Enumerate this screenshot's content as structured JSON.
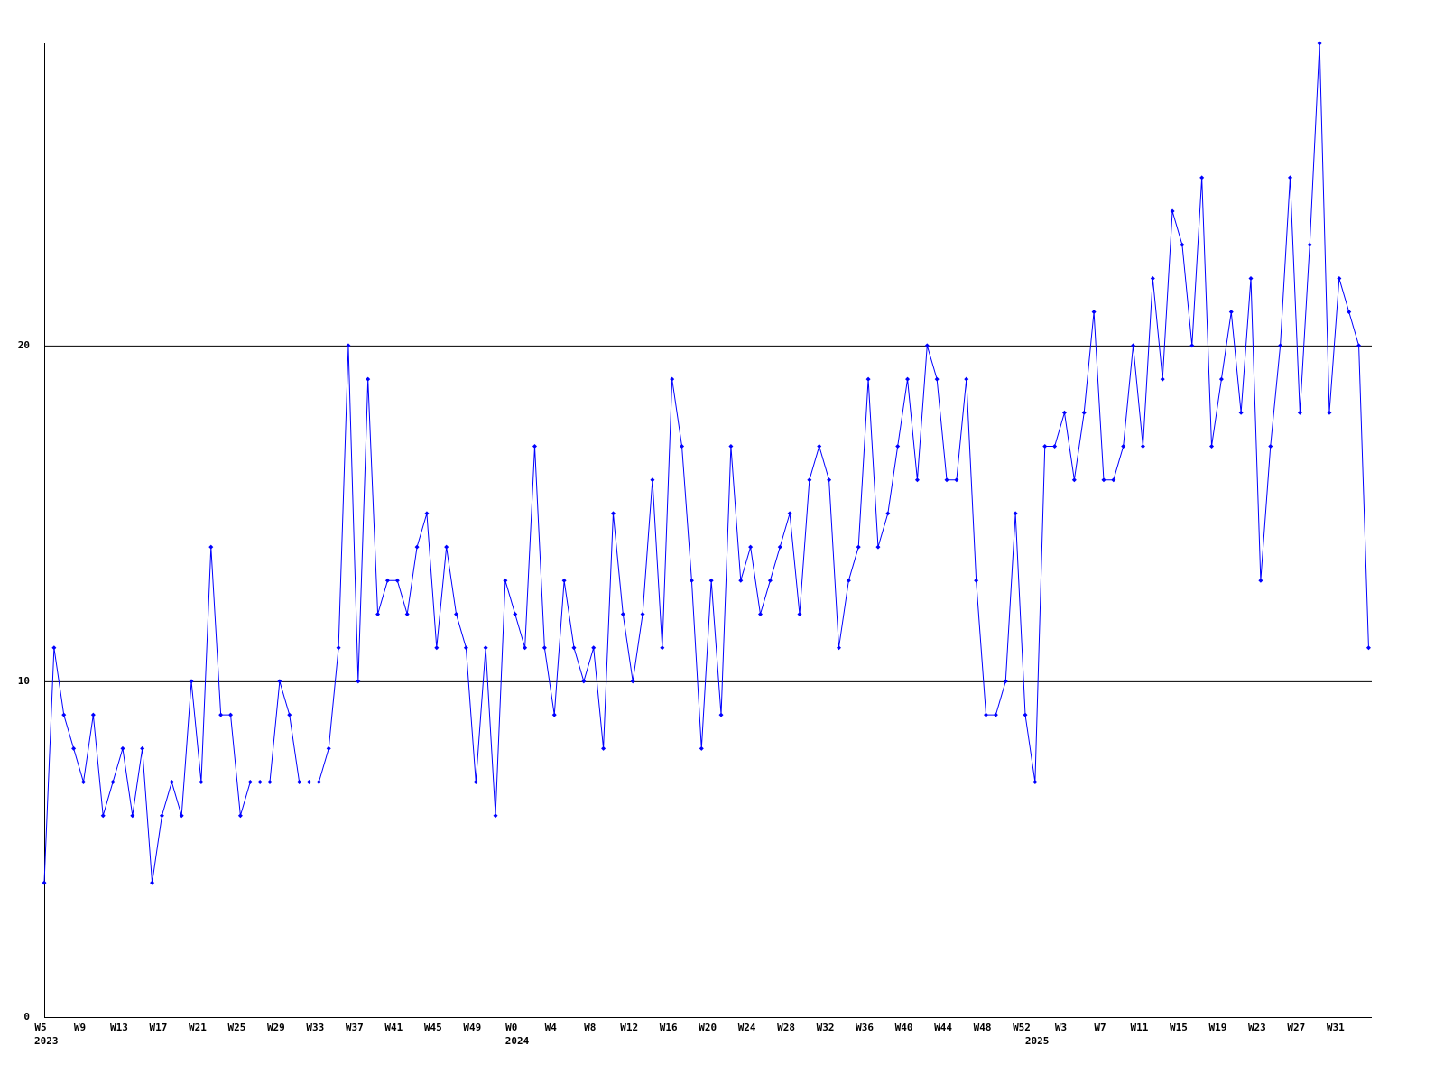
{
  "chart_data": {
    "type": "line",
    "categories": [
      "W5",
      null,
      null,
      null,
      "W9",
      null,
      null,
      null,
      "W13",
      null,
      null,
      null,
      "W17",
      null,
      null,
      null,
      "W21",
      null,
      null,
      null,
      "W25",
      null,
      null,
      null,
      "W29",
      null,
      null,
      null,
      "W33",
      null,
      null,
      null,
      "W37",
      null,
      null,
      null,
      "W41",
      null,
      null,
      null,
      "W45",
      null,
      null,
      null,
      "W49",
      null,
      null,
      null,
      "W0",
      null,
      null,
      null,
      "W4",
      null,
      null,
      null,
      "W8",
      null,
      null,
      null,
      "W12",
      null,
      null,
      null,
      "W16",
      null,
      null,
      null,
      "W20",
      null,
      null,
      null,
      "W24",
      null,
      null,
      null,
      "W28",
      null,
      null,
      null,
      "W32",
      null,
      null,
      null,
      "W36",
      null,
      null,
      null,
      "W40",
      null,
      null,
      null,
      "W44",
      null,
      null,
      null,
      "W48",
      null,
      null,
      null,
      "W52",
      null,
      null,
      null,
      "W3",
      null,
      null,
      null,
      "W7",
      null,
      null,
      null,
      "W11",
      null,
      null,
      null,
      "W15",
      null,
      null,
      null,
      "W19",
      null,
      null,
      null,
      "W23",
      null,
      null,
      null,
      "W27",
      null,
      null,
      null,
      "W31",
      null,
      null,
      null
    ],
    "year_labels": [
      {
        "index": 0,
        "label": "2023"
      },
      {
        "index": 48,
        "label": "2024"
      },
      {
        "index": 101,
        "label": "2025"
      }
    ],
    "series": [
      {
        "color": "#0000ff",
        "values": [
          4,
          11,
          9,
          8,
          7,
          9,
          6,
          7,
          8,
          6,
          8,
          4,
          6,
          7,
          6,
          10,
          7,
          14,
          9,
          9,
          6,
          7,
          7,
          7,
          10,
          9,
          7,
          7,
          7,
          8,
          11,
          20,
          10,
          19,
          12,
          13,
          13,
          12,
          14,
          15,
          11,
          14,
          12,
          11,
          7,
          11,
          6,
          13,
          12,
          11,
          17,
          11,
          9,
          13,
          11,
          10,
          11,
          8,
          15,
          12,
          10,
          12,
          16,
          11,
          19,
          17,
          13,
          8,
          13,
          9,
          17,
          13,
          14,
          12,
          13,
          14,
          15,
          12,
          16,
          17,
          16,
          11,
          13,
          14,
          19,
          14,
          15,
          17,
          19,
          16,
          20,
          19,
          16,
          16,
          19,
          13,
          9,
          9,
          10,
          15,
          9,
          7,
          17,
          17,
          18,
          16,
          18,
          21,
          16,
          16,
          17,
          20,
          17,
          22,
          19,
          24,
          23,
          20,
          25,
          17,
          19,
          21,
          18,
          22,
          13,
          17,
          20,
          25,
          18,
          23,
          29,
          18,
          22,
          21,
          20,
          11
        ]
      }
    ],
    "ylim": [
      0,
      29
    ],
    "yticks": [
      0,
      10,
      20
    ],
    "grid": true
  }
}
